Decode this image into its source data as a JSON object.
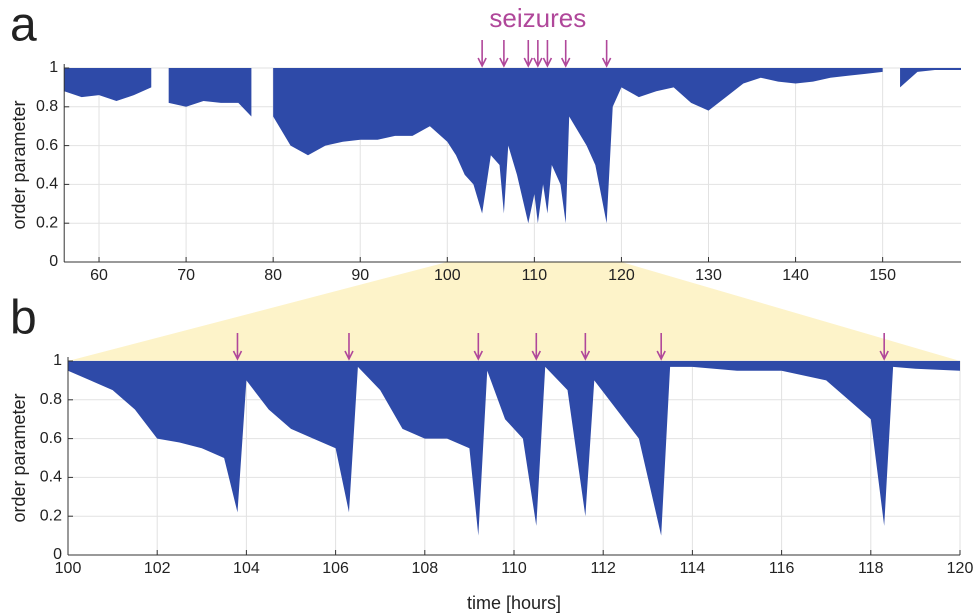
{
  "chart_data": [
    {
      "type": "area",
      "panel_label": "a",
      "annotation": "seizures",
      "y_label": "order parameter",
      "color": "#2e4aa8",
      "arrow_color": "#b0479a",
      "grid": true,
      "xlim": [
        56,
        159
      ],
      "xticks": [
        60,
        70,
        80,
        90,
        100,
        110,
        120,
        130,
        140,
        150
      ],
      "ylim": [
        0,
        1
      ],
      "yticks": [
        0,
        0.2,
        0.4,
        0.6,
        0.8,
        1
      ],
      "x": [
        56,
        58,
        60,
        62,
        64,
        66,
        67,
        68,
        70,
        72,
        74,
        76,
        77.5,
        78.8,
        80,
        82,
        84,
        86,
        88,
        90,
        92,
        94,
        96,
        98,
        100,
        101,
        102,
        103,
        104,
        105,
        106,
        106.5,
        107,
        108,
        109.3,
        110,
        110.4,
        111,
        111.5,
        112,
        113,
        113.6,
        114,
        116,
        117,
        118.3,
        119,
        120,
        122,
        124,
        126,
        128,
        130,
        132,
        134,
        136,
        138,
        140,
        142,
        144,
        146,
        148,
        150,
        150.8,
        152,
        154,
        156,
        159
      ],
      "values": [
        0.88,
        0.85,
        0.86,
        0.83,
        0.86,
        0.9,
        null,
        0.82,
        0.8,
        0.83,
        0.82,
        0.82,
        0.75,
        null,
        0.75,
        0.6,
        0.55,
        0.6,
        0.62,
        0.63,
        0.63,
        0.65,
        0.65,
        0.7,
        0.62,
        0.55,
        0.45,
        0.4,
        0.25,
        0.55,
        0.5,
        0.25,
        0.6,
        0.45,
        0.2,
        0.35,
        0.2,
        0.4,
        0.25,
        0.5,
        0.4,
        0.2,
        0.75,
        0.6,
        0.5,
        0.2,
        0.8,
        0.9,
        0.85,
        0.88,
        0.9,
        0.82,
        0.78,
        0.85,
        0.92,
        0.95,
        0.93,
        0.92,
        0.93,
        0.95,
        0.96,
        0.97,
        0.98,
        null,
        0.9,
        0.98,
        0.99,
        0.99
      ],
      "seizures": [
        104,
        106.5,
        109.3,
        110.4,
        111.5,
        113.6,
        118.3
      ]
    },
    {
      "type": "area",
      "panel_label": "b",
      "y_label": "order parameter",
      "x_label": "time [hours]",
      "color": "#2e4aa8",
      "arrow_color": "#b0479a",
      "grid": true,
      "xlim": [
        100,
        120
      ],
      "xticks": [
        100,
        102,
        104,
        106,
        108,
        110,
        112,
        114,
        116,
        118,
        120
      ],
      "ylim": [
        0,
        1
      ],
      "yticks": [
        0,
        0.2,
        0.4,
        0.6,
        0.8,
        1
      ],
      "x": [
        100,
        100.5,
        101,
        101.5,
        102,
        102.5,
        103,
        103.5,
        103.8,
        104,
        104.5,
        105,
        105.5,
        106,
        106.3,
        106.5,
        107,
        107.5,
        108,
        108.5,
        109,
        109.2,
        109.4,
        109.8,
        110.2,
        110.5,
        110.7,
        111.2,
        111.6,
        111.8,
        112.3,
        112.8,
        113.3,
        113.5,
        114,
        115,
        116,
        117,
        117.5,
        118,
        118.3,
        118.5,
        119,
        120
      ],
      "values": [
        0.95,
        0.9,
        0.85,
        0.75,
        0.6,
        0.58,
        0.55,
        0.5,
        0.22,
        0.9,
        0.75,
        0.65,
        0.6,
        0.55,
        0.22,
        0.97,
        0.85,
        0.65,
        0.6,
        0.6,
        0.55,
        0.1,
        0.95,
        0.7,
        0.6,
        0.15,
        0.97,
        0.85,
        0.2,
        0.9,
        0.75,
        0.6,
        0.1,
        0.97,
        0.97,
        0.95,
        0.95,
        0.9,
        0.8,
        0.7,
        0.15,
        0.97,
        0.96,
        0.95
      ],
      "seizures": [
        103.8,
        106.3,
        109.2,
        110.5,
        111.6,
        113.3,
        118.3
      ]
    }
  ]
}
